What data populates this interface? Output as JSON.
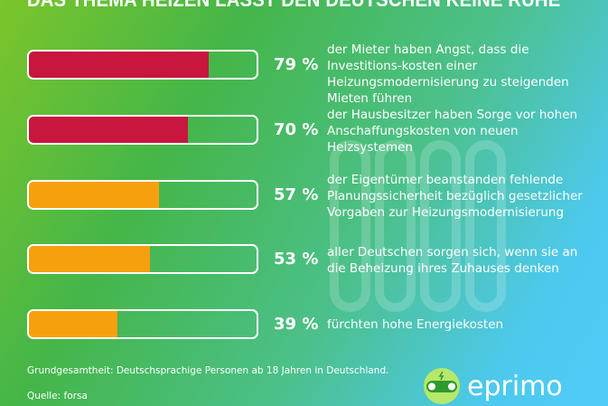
{
  "title": "DAS THEMA HEIZEN LÄSST DEN DEUTSCHEN KEINE RUHE",
  "chart_data": {
    "type": "bar",
    "values": [
      79,
      70,
      57,
      53,
      39
    ],
    "labels": [
      "79 %",
      "70 %",
      "57 %",
      "53 %",
      "39 %"
    ],
    "descriptions": [
      "der Mieter haben Angst, dass die Investitions-kosten einer Heizungsmodernisierung zu steigenden Mieten führen",
      "der Hausbesitzer haben Sorge vor hohen Anschaffungskosten von neuen Heizsystemen",
      "der Eigentümer beanstanden fehlende Planungssicherheit bezüglich gesetzlicher Vorgaben zur Heizungsmodernisierung",
      "aller Deutschen sorgen sich, wenn sie an die Beheizung ihres Zuhauses denken",
      "fürchten hohe Energiekosten"
    ],
    "colors": [
      "#c8163f",
      "#c8163f",
      "#f7a00e",
      "#f7a00e",
      "#f7a00e"
    ],
    "xlim": [
      0,
      100
    ]
  },
  "footer": {
    "base": "Grundgesamtheit: Deutschsprachige Personen ab 18 Jahren in Deutschland.",
    "source": "Quelle: forsa"
  },
  "logo": {
    "text": "eprimo"
  }
}
